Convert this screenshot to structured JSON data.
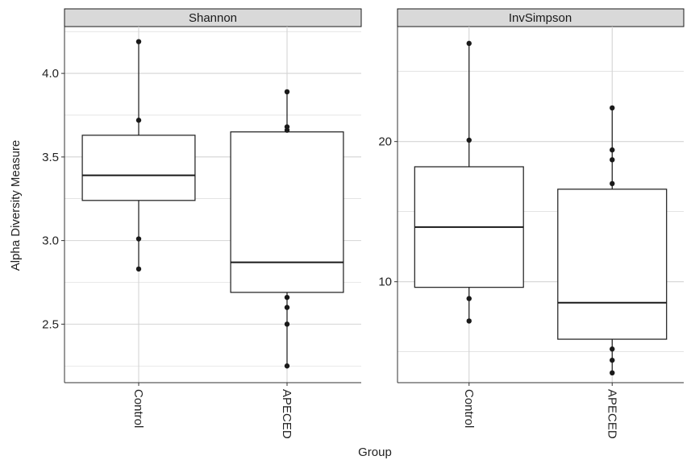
{
  "chart_data": {
    "type": "boxplot",
    "xlabel": "Group",
    "ylabel": "Alpha Diversity Measure",
    "categories": [
      "Control",
      "APECED"
    ],
    "grid": true,
    "legend": "none",
    "colors": {
      "strip_fill": "#d9d9d9",
      "grid": "#d4d4d4",
      "box": "#1a1a1a",
      "point": "#1a1a1a"
    },
    "panels": [
      {
        "title": "Shannon",
        "ylim": [
          2.15,
          4.28
        ],
        "yticks": [
          2.5,
          3.0,
          3.5,
          4.0
        ],
        "ytick_labels": [
          "2.5",
          "3.0",
          "3.5",
          "4.0"
        ],
        "boxes": [
          {
            "group": "Control",
            "min": 2.83,
            "q1": 3.24,
            "median": 3.39,
            "q3": 3.63,
            "max": 4.19,
            "points": [
              4.19,
              3.72,
              3.01,
              2.83
            ]
          },
          {
            "group": "APECED",
            "min": 2.25,
            "q1": 2.69,
            "median": 2.87,
            "q3": 3.65,
            "max": 3.89,
            "points": [
              3.89,
              3.68,
              3.66,
              2.66,
              2.6,
              2.5,
              2.25
            ]
          }
        ]
      },
      {
        "title": "InvSimpson",
        "ylim": [
          2.8,
          28.2
        ],
        "yticks": [
          10,
          20
        ],
        "ytick_labels": [
          "10",
          "20"
        ],
        "boxes": [
          {
            "group": "Control",
            "min": 7.2,
            "q1": 9.6,
            "median": 13.9,
            "q3": 18.2,
            "max": 27.0,
            "points": [
              27.0,
              20.1,
              8.8,
              7.2
            ]
          },
          {
            "group": "APECED",
            "min": 3.5,
            "q1": 5.9,
            "median": 8.5,
            "q3": 16.6,
            "max": 22.4,
            "points": [
              22.4,
              19.4,
              18.7,
              17.0,
              5.2,
              4.4,
              3.5
            ]
          }
        ]
      }
    ]
  }
}
